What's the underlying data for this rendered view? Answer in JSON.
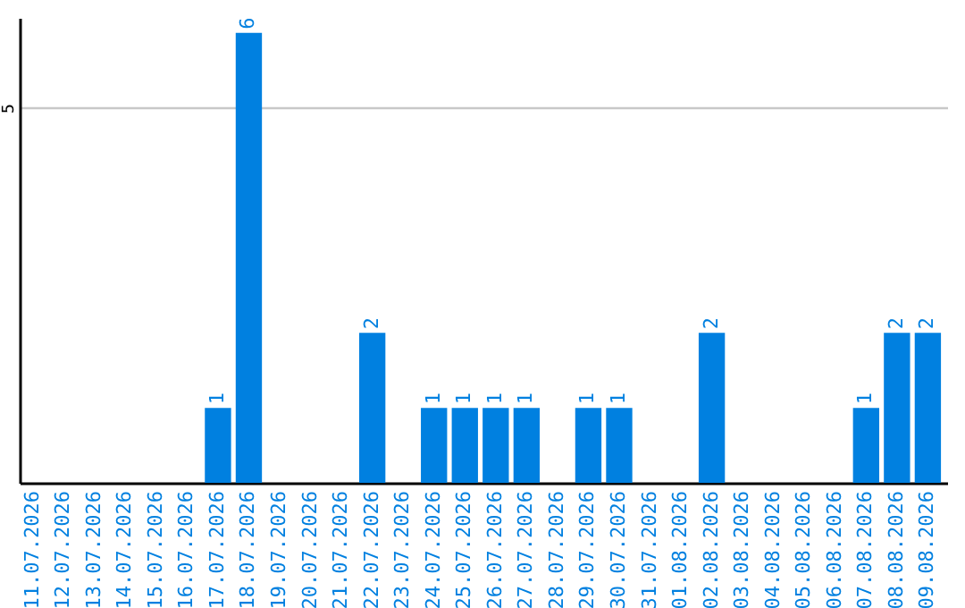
{
  "chart_data": {
    "type": "bar",
    "categories": [
      "11.07.2026",
      "12.07.2026",
      "13.07.2026",
      "14.07.2026",
      "15.07.2026",
      "16.07.2026",
      "17.07.2026",
      "18.07.2026",
      "19.07.2026",
      "20.07.2026",
      "21.07.2026",
      "22.07.2026",
      "23.07.2026",
      "24.07.2026",
      "25.07.2026",
      "26.07.2026",
      "27.07.2026",
      "28.07.2026",
      "29.07.2026",
      "30.07.2026",
      "31.07.2026",
      "01.08.2026",
      "02.08.2026",
      "03.08.2026",
      "04.08.2026",
      "05.08.2026",
      "06.08.2026",
      "07.08.2026",
      "08.08.2026",
      "09.08.2026"
    ],
    "values": [
      0,
      0,
      0,
      0,
      0,
      0,
      1,
      6,
      0,
      0,
      0,
      2,
      0,
      1,
      1,
      1,
      1,
      0,
      1,
      1,
      0,
      0,
      2,
      0,
      0,
      0,
      0,
      1,
      2,
      2
    ],
    "value_labels": [
      null,
      null,
      null,
      null,
      null,
      null,
      "1",
      "6",
      null,
      null,
      null,
      "2",
      null,
      "1",
      "1",
      "1",
      "1",
      null,
      "1",
      "1",
      null,
      null,
      "2",
      null,
      null,
      null,
      null,
      "1",
      "2",
      "2"
    ],
    "color": "#0080e0",
    "ylim": [
      0,
      6.2
    ],
    "yticks": [
      5
    ],
    "grid": "y"
  }
}
